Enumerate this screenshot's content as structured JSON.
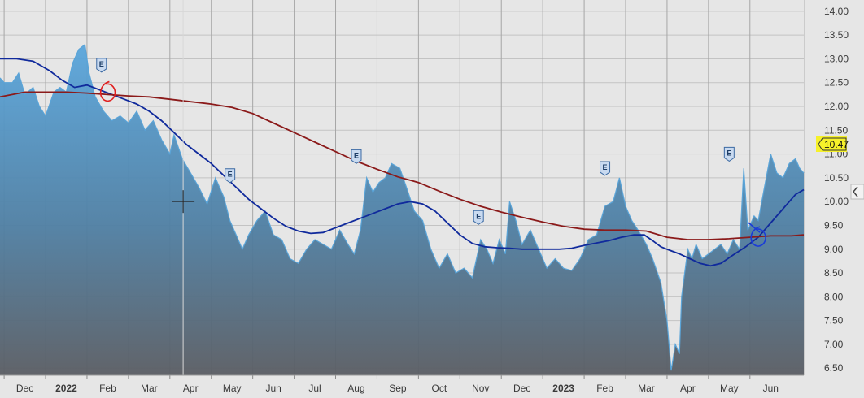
{
  "chart_data": {
    "type": "area",
    "y_ticks": [
      6.5,
      7.0,
      7.5,
      8.0,
      8.5,
      9.0,
      9.5,
      10.0,
      10.5,
      11.0,
      11.5,
      12.0,
      12.5,
      13.0,
      13.5,
      14.0
    ],
    "ylim": [
      6.35,
      14.1
    ],
    "grid": true,
    "x_ticks": [
      {
        "label": "Dec",
        "m": 11.5
      },
      {
        "label": "2022",
        "m": 12.5,
        "bold": true
      },
      {
        "label": "Feb",
        "m": 13.5
      },
      {
        "label": "Mar",
        "m": 14.5
      },
      {
        "label": "Apr",
        "m": 15.5
      },
      {
        "label": "May",
        "m": 16.5
      },
      {
        "label": "Jun",
        "m": 17.5
      },
      {
        "label": "Jul",
        "m": 18.5
      },
      {
        "label": "Aug",
        "m": 19.5
      },
      {
        "label": "Sep",
        "m": 20.5
      },
      {
        "label": "Oct",
        "m": 21.5
      },
      {
        "label": "Nov",
        "m": 22.5
      },
      {
        "label": "Dec",
        "m": 23.5
      },
      {
        "label": "2023",
        "m": 24.5,
        "bold": true
      },
      {
        "label": "Feb",
        "m": 25.5
      },
      {
        "label": "Mar",
        "m": 26.5
      },
      {
        "label": "Apr",
        "m": 27.5
      },
      {
        "label": "May",
        "m": 28.5
      },
      {
        "label": "Jun",
        "m": 29.5
      }
    ],
    "xlim": [
      10.9,
      30.3
    ],
    "last_price": "10.47",
    "series": [
      {
        "kind": "price-area",
        "color": "#5aa4d8",
        "points": [
          [
            10.9,
            12.6
          ],
          [
            11.0,
            12.5
          ],
          [
            11.2,
            12.5
          ],
          [
            11.35,
            12.7
          ],
          [
            11.5,
            12.25
          ],
          [
            11.7,
            12.4
          ],
          [
            11.85,
            12.0
          ],
          [
            12.0,
            11.8
          ],
          [
            12.2,
            12.3
          ],
          [
            12.35,
            12.4
          ],
          [
            12.5,
            12.3
          ],
          [
            12.65,
            12.9
          ],
          [
            12.8,
            13.2
          ],
          [
            12.95,
            13.3
          ],
          [
            13.05,
            12.7
          ],
          [
            13.2,
            12.2
          ],
          [
            13.4,
            11.9
          ],
          [
            13.6,
            11.7
          ],
          [
            13.8,
            11.8
          ],
          [
            14.0,
            11.65
          ],
          [
            14.2,
            11.9
          ],
          [
            14.4,
            11.5
          ],
          [
            14.6,
            11.7
          ],
          [
            14.8,
            11.3
          ],
          [
            15.0,
            11.0
          ],
          [
            15.1,
            11.4
          ],
          [
            15.3,
            10.9
          ],
          [
            15.5,
            10.6
          ],
          [
            15.7,
            10.3
          ],
          [
            15.9,
            9.95
          ],
          [
            16.1,
            10.5
          ],
          [
            16.3,
            10.1
          ],
          [
            16.45,
            9.6
          ],
          [
            16.6,
            9.3
          ],
          [
            16.75,
            9.0
          ],
          [
            16.9,
            9.3
          ],
          [
            17.1,
            9.6
          ],
          [
            17.3,
            9.8
          ],
          [
            17.5,
            9.3
          ],
          [
            17.7,
            9.2
          ],
          [
            17.9,
            8.8
          ],
          [
            18.1,
            8.7
          ],
          [
            18.3,
            9.0
          ],
          [
            18.5,
            9.2
          ],
          [
            18.7,
            9.1
          ],
          [
            18.9,
            9.0
          ],
          [
            19.1,
            9.4
          ],
          [
            19.3,
            9.1
          ],
          [
            19.45,
            8.9
          ],
          [
            19.6,
            9.4
          ],
          [
            19.75,
            10.5
          ],
          [
            19.9,
            10.2
          ],
          [
            20.05,
            10.4
          ],
          [
            20.2,
            10.5
          ],
          [
            20.35,
            10.8
          ],
          [
            20.55,
            10.7
          ],
          [
            20.75,
            10.2
          ],
          [
            20.9,
            9.8
          ],
          [
            21.1,
            9.6
          ],
          [
            21.3,
            9.0
          ],
          [
            21.5,
            8.6
          ],
          [
            21.7,
            8.9
          ],
          [
            21.9,
            8.5
          ],
          [
            22.1,
            8.6
          ],
          [
            22.3,
            8.4
          ],
          [
            22.5,
            9.2
          ],
          [
            22.65,
            9.0
          ],
          [
            22.8,
            8.7
          ],
          [
            22.95,
            9.2
          ],
          [
            23.1,
            8.9
          ],
          [
            23.2,
            10.0
          ],
          [
            23.35,
            9.6
          ],
          [
            23.5,
            9.1
          ],
          [
            23.7,
            9.4
          ],
          [
            23.9,
            9.0
          ],
          [
            24.1,
            8.6
          ],
          [
            24.3,
            8.8
          ],
          [
            24.5,
            8.6
          ],
          [
            24.7,
            8.55
          ],
          [
            24.9,
            8.8
          ],
          [
            25.1,
            9.2
          ],
          [
            25.3,
            9.3
          ],
          [
            25.5,
            9.9
          ],
          [
            25.7,
            10.0
          ],
          [
            25.85,
            10.5
          ],
          [
            26.0,
            9.9
          ],
          [
            26.15,
            9.6
          ],
          [
            26.3,
            9.4
          ],
          [
            26.5,
            9.1
          ],
          [
            26.65,
            8.8
          ],
          [
            26.85,
            8.3
          ],
          [
            27.0,
            7.5
          ],
          [
            27.1,
            6.45
          ],
          [
            27.2,
            7.0
          ],
          [
            27.3,
            6.8
          ],
          [
            27.35,
            8.0
          ],
          [
            27.5,
            9.0
          ],
          [
            27.6,
            8.8
          ],
          [
            27.7,
            9.1
          ],
          [
            27.85,
            8.8
          ],
          [
            28.0,
            8.9
          ],
          [
            28.15,
            9.0
          ],
          [
            28.3,
            9.1
          ],
          [
            28.45,
            8.9
          ],
          [
            28.6,
            9.2
          ],
          [
            28.75,
            9.0
          ],
          [
            28.85,
            10.7
          ],
          [
            28.95,
            9.4
          ],
          [
            29.1,
            9.7
          ],
          [
            29.2,
            9.6
          ],
          [
            29.35,
            10.3
          ],
          [
            29.5,
            11.0
          ],
          [
            29.65,
            10.6
          ],
          [
            29.8,
            10.5
          ],
          [
            29.95,
            10.8
          ],
          [
            30.1,
            10.9
          ],
          [
            30.2,
            10.7
          ],
          [
            30.3,
            10.6
          ]
        ]
      },
      {
        "kind": "moving-average-short",
        "color": "#102a9c",
        "points": [
          [
            10.9,
            13.0
          ],
          [
            11.3,
            13.0
          ],
          [
            11.7,
            12.95
          ],
          [
            12.1,
            12.75
          ],
          [
            12.4,
            12.55
          ],
          [
            12.7,
            12.4
          ],
          [
            13.0,
            12.45
          ],
          [
            13.3,
            12.35
          ],
          [
            13.6,
            12.25
          ],
          [
            13.9,
            12.15
          ],
          [
            14.2,
            12.05
          ],
          [
            14.5,
            11.9
          ],
          [
            14.8,
            11.7
          ],
          [
            15.1,
            11.45
          ],
          [
            15.4,
            11.2
          ],
          [
            15.7,
            11.0
          ],
          [
            16.0,
            10.8
          ],
          [
            16.3,
            10.55
          ],
          [
            16.6,
            10.3
          ],
          [
            16.9,
            10.05
          ],
          [
            17.2,
            9.85
          ],
          [
            17.5,
            9.65
          ],
          [
            17.8,
            9.48
          ],
          [
            18.1,
            9.38
          ],
          [
            18.4,
            9.33
          ],
          [
            18.7,
            9.35
          ],
          [
            19.0,
            9.45
          ],
          [
            19.3,
            9.55
          ],
          [
            19.6,
            9.65
          ],
          [
            19.9,
            9.75
          ],
          [
            20.2,
            9.85
          ],
          [
            20.5,
            9.95
          ],
          [
            20.8,
            10.0
          ],
          [
            21.1,
            9.95
          ],
          [
            21.4,
            9.8
          ],
          [
            21.7,
            9.55
          ],
          [
            22.0,
            9.3
          ],
          [
            22.3,
            9.12
          ],
          [
            22.6,
            9.05
          ],
          [
            22.9,
            9.03
          ],
          [
            23.2,
            9.02
          ],
          [
            23.5,
            9.0
          ],
          [
            23.8,
            9.0
          ],
          [
            24.1,
            9.0
          ],
          [
            24.4,
            9.0
          ],
          [
            24.7,
            9.02
          ],
          [
            25.0,
            9.08
          ],
          [
            25.3,
            9.13
          ],
          [
            25.6,
            9.18
          ],
          [
            25.9,
            9.25
          ],
          [
            26.2,
            9.3
          ],
          [
            26.45,
            9.3
          ],
          [
            26.65,
            9.18
          ],
          [
            26.85,
            9.05
          ],
          [
            27.05,
            8.98
          ],
          [
            27.3,
            8.9
          ],
          [
            27.55,
            8.8
          ],
          [
            27.8,
            8.7
          ],
          [
            28.05,
            8.65
          ],
          [
            28.3,
            8.7
          ],
          [
            28.6,
            8.88
          ],
          [
            28.9,
            9.05
          ],
          [
            29.2,
            9.25
          ],
          [
            29.5,
            9.55
          ],
          [
            29.8,
            9.85
          ],
          [
            30.1,
            10.15
          ],
          [
            30.3,
            10.25
          ]
        ]
      },
      {
        "kind": "moving-average-long",
        "color": "#8b1a1a",
        "points": [
          [
            10.9,
            12.2
          ],
          [
            11.5,
            12.3
          ],
          [
            12.0,
            12.3
          ],
          [
            12.5,
            12.3
          ],
          [
            13.0,
            12.28
          ],
          [
            13.5,
            12.25
          ],
          [
            14.0,
            12.22
          ],
          [
            14.5,
            12.2
          ],
          [
            15.0,
            12.15
          ],
          [
            15.5,
            12.1
          ],
          [
            16.0,
            12.05
          ],
          [
            16.5,
            11.98
          ],
          [
            17.0,
            11.85
          ],
          [
            17.5,
            11.65
          ],
          [
            18.0,
            11.45
          ],
          [
            18.5,
            11.25
          ],
          [
            19.0,
            11.05
          ],
          [
            19.5,
            10.85
          ],
          [
            20.0,
            10.68
          ],
          [
            20.5,
            10.52
          ],
          [
            21.0,
            10.4
          ],
          [
            21.5,
            10.22
          ],
          [
            22.0,
            10.05
          ],
          [
            22.5,
            9.9
          ],
          [
            23.0,
            9.78
          ],
          [
            23.5,
            9.67
          ],
          [
            24.0,
            9.57
          ],
          [
            24.5,
            9.48
          ],
          [
            25.0,
            9.42
          ],
          [
            25.5,
            9.4
          ],
          [
            26.0,
            9.4
          ],
          [
            26.5,
            9.38
          ],
          [
            27.0,
            9.25
          ],
          [
            27.5,
            9.2
          ],
          [
            28.0,
            9.2
          ],
          [
            28.5,
            9.22
          ],
          [
            29.0,
            9.25
          ],
          [
            29.5,
            9.28
          ],
          [
            30.0,
            9.28
          ],
          [
            30.3,
            9.3
          ]
        ]
      }
    ],
    "earnings_markers": [
      {
        "label": "E",
        "m": 13.35,
        "v": 12.72
      },
      {
        "label": "E",
        "m": 16.45,
        "v": 10.4
      },
      {
        "label": "E",
        "m": 19.5,
        "v": 10.8
      },
      {
        "label": "E",
        "m": 22.45,
        "v": 9.52
      },
      {
        "label": "E",
        "m": 25.5,
        "v": 10.55
      },
      {
        "label": "E",
        "m": 28.5,
        "v": 10.85
      }
    ],
    "annotations": [
      {
        "kind": "circle",
        "color": "#e02020",
        "m": 13.5,
        "v": 12.3
      },
      {
        "kind": "circle",
        "color": "#1a3bd8",
        "m": 29.2,
        "v": 9.25
      }
    ],
    "crosshair": {
      "m": 15.32,
      "v": 10.0
    }
  }
}
